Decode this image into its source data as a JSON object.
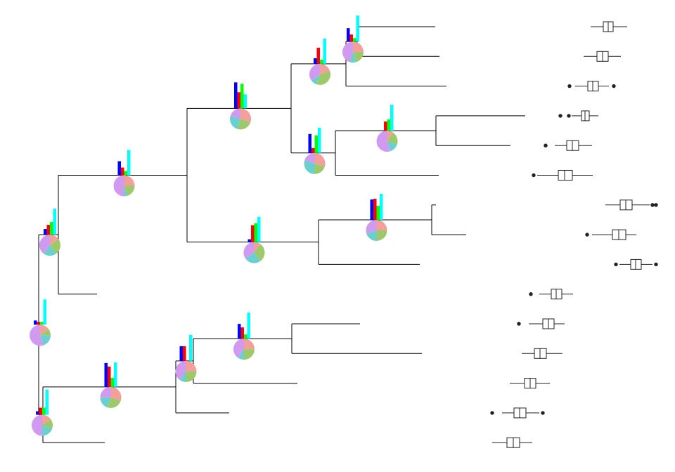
{
  "settings": {
    "bar_colors": [
      "#0000ff",
      "#ff0000",
      "#00ff00",
      "#00ffff"
    ],
    "pie_colors": [
      "#f4a09a",
      "#9dc96a",
      "#6ccfcf",
      "#d09af0"
    ],
    "box_origin": 600
  },
  "tree": {
    "length": 0,
    "bars": [
      6,
      4,
      4,
      36
    ],
    "pie": [
      15,
      10,
      20,
      55
    ],
    "children": [
      {
        "length": 28,
        "bars": [
          8,
          14,
          18,
          37
        ],
        "pie": [
          15,
          25,
          20,
          40
        ],
        "children": [
          {
            "length": 183,
            "bars": [
              20,
              11,
              6,
              36
            ],
            "pie": [
              25,
              20,
              5,
              50
            ],
            "children": [
              {
                "length": 148,
                "bars": [
                  37,
                  23,
                  35,
                  20
                ],
                "pie": [
                  30,
                  25,
                  25,
                  20
                ],
                "children": [
                  {
                    "length": 78,
                    "bars": [
                      8,
                      23,
                      6,
                      36
                    ],
                    "pie": [
                      20,
                      35,
                      10,
                      35
                    ],
                    "children": [
                      {
                        "length": 16,
                        "bars": [
                          19,
                          10,
                          5,
                          37
                        ],
                        "pie": [
                          25,
                          20,
                          10,
                          45
                        ],
                        "children": [
                          {
                            "length": 111,
                            "box": [
                              240,
                              258,
                              265,
                              272,
                              292
                            ],
                            "outliers": []
                          },
                          {
                            "length": 117,
                            "box": [
                              230,
                              249,
                              257,
                              265,
                              283
                            ],
                            "outliers": []
                          }
                        ]
                      },
                      {
                        "length": 143,
                        "box": [
                          218,
                          236,
                          243,
                          251,
                          266
                        ],
                        "outliers": [
                          210,
                          273
                        ]
                      }
                    ]
                  },
                  {
                    "length": 63,
                    "bars": [
                      27,
                      7,
                      25,
                      36
                    ],
                    "pie": [
                      30,
                      20,
                      30,
                      20
                    ],
                    "children": [
                      {
                        "length": 143,
                        "bars": [
                          0,
                          13,
                          16,
                          37
                        ],
                        "pie": [
                          10,
                          20,
                          15,
                          55
                        ],
                        "children": [
                          {
                            "length": 127,
                            "box": [
                              213,
                              227,
                              232,
                              238,
                              251
                            ],
                            "outliers": [
                              197,
                              209
                            ]
                          },
                          {
                            "length": 106,
                            "box": [
                              189,
                              206,
                              214,
                              223,
                              242
                            ],
                            "outliers": [
                              176
                            ]
                          }
                        ]
                      },
                      {
                        "length": 147,
                        "box": [
                          164,
                          194,
                          203,
                          214,
                          243
                        ],
                        "outliers": [
                          159
                        ]
                      }
                    ]
                  }
                ]
              },
              {
                "length": 187,
                "bars": [
                  4,
                  24,
                  27,
                  36
                ],
                "pie": [
                  10,
                  30,
                  25,
                  35
                ],
                "children": [
                  {
                    "length": 161,
                    "bars": [
                      29,
                      30,
                      20,
                      37
                    ],
                    "pie": [
                      25,
                      25,
                      20,
                      30
                    ],
                    "children": [
                      {
                        "length": 6,
                        "box": [
                          261,
                          282,
                          290,
                          299,
                          324
                        ],
                        "outliers": [
                          328,
                          333
                        ]
                      },
                      {
                        "length": 49,
                        "box": [
                          242,
                          271,
                          280,
                          290,
                          305
                        ],
                        "outliers": [
                          235
                        ]
                      }
                    ]
                  },
                  {
                    "length": 144,
                    "box": [
                      281,
                      297,
                      304,
                      312,
                      328
                    ],
                    "outliers": [
                      276,
                      333
                    ]
                  }
                ]
              }
            ]
          },
          {
            "length": 55,
            "box": [
              167,
              184,
              191,
              199,
              215
            ],
            "outliers": [
              155
            ]
          }
        ]
      },
      {
        "length": 6,
        "bars": [
          5,
          10,
          10,
          36
        ],
        "pie": [
          15,
          15,
          20,
          50
        ],
        "children": [
          {
            "length": 189,
            "bars": [
              34,
              29,
              13,
              35
            ],
            "pie": [
              30,
              25,
              20,
              25
            ],
            "children": [
              {
                "length": 25,
                "bars": [
                  21,
                  21,
                  0,
                  37
                ],
                "pie": [
                  25,
                  25,
                  10,
                  40
                ],
                "children": [
                  {
                    "length": 140,
                    "bars": [
                      21,
                      16,
                      6,
                      37
                    ],
                    "pie": [
                      25,
                      25,
                      10,
                      40
                    ],
                    "children": [
                      {
                        "length": 97,
                        "box": [
                          152,
                          172,
                          180,
                          188,
                          203
                        ],
                        "outliers": [
                          138
                        ]
                      },
                      {
                        "length": 185,
                        "box": [
                          142,
                          160,
                          168,
                          177,
                          200
                        ],
                        "outliers": []
                      }
                    ]
                  },
                  {
                    "length": 148,
                    "box": [
                      125,
                      146,
                      154,
                      162,
                      182
                    ],
                    "outliers": []
                  }
                ]
              },
              {
                "length": 76,
                "box": [
                  114,
                  131,
                  139,
                  148,
                  167
                ],
                "outliers": [
                  100,
                  172
                ]
              }
            ]
          },
          {
            "length": 88,
            "box": [
              100,
              121,
              130,
              139,
              157
            ],
            "outliers": []
          }
        ]
      }
    ]
  }
}
